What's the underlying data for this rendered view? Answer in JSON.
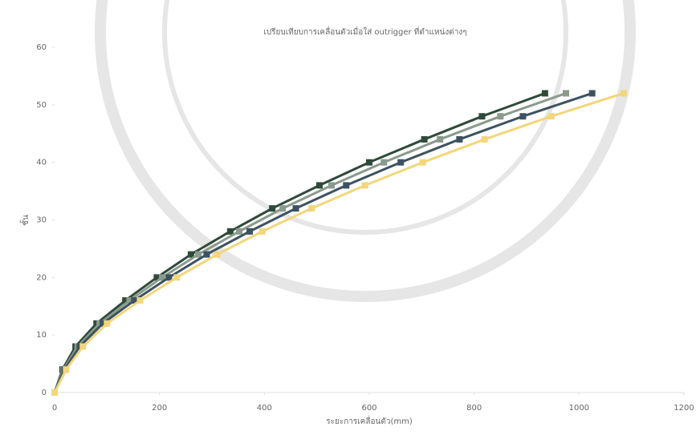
{
  "chart_data": {
    "type": "scatter",
    "title": "เปรียบเทียบการเคลื่อนตัวเมื่อใส่ outrigger ที่ตำแหน่งต่างๆ",
    "x_label": "ระยะการเคลื่อนตัว(mm)",
    "y_label": "ชั้น",
    "y": [
      0,
      4,
      8,
      12,
      16,
      20,
      24,
      28,
      32,
      36,
      40,
      44,
      48,
      52
    ],
    "series": [
      {
        "color": "#2f4a3a",
        "x": [
          0,
          15,
          40,
          80,
          135,
          195,
          260,
          335,
          415,
          505,
          600,
          705,
          815,
          935
        ]
      },
      {
        "color": "#8a9a8c",
        "x": [
          0,
          17,
          44,
          86,
          143,
          205,
          274,
          352,
          435,
          528,
          628,
          735,
          850,
          975
        ]
      },
      {
        "color": "#3c5262",
        "x": [
          0,
          19,
          48,
          92,
          152,
          218,
          290,
          372,
          460,
          556,
          660,
          772,
          893,
          1025
        ]
      },
      {
        "color": "#f3d67c",
        "x": [
          0,
          22,
          54,
          100,
          163,
          233,
          310,
          396,
          490,
          592,
          702,
          820,
          947,
          1085
        ]
      }
    ],
    "xlim": [
      0,
      1200
    ],
    "xticks": [
      0,
      200,
      400,
      600,
      800,
      1000,
      1200
    ],
    "ylim": [
      0,
      60
    ],
    "yticks": [
      0,
      10,
      20,
      30,
      40,
      50,
      60
    ]
  }
}
